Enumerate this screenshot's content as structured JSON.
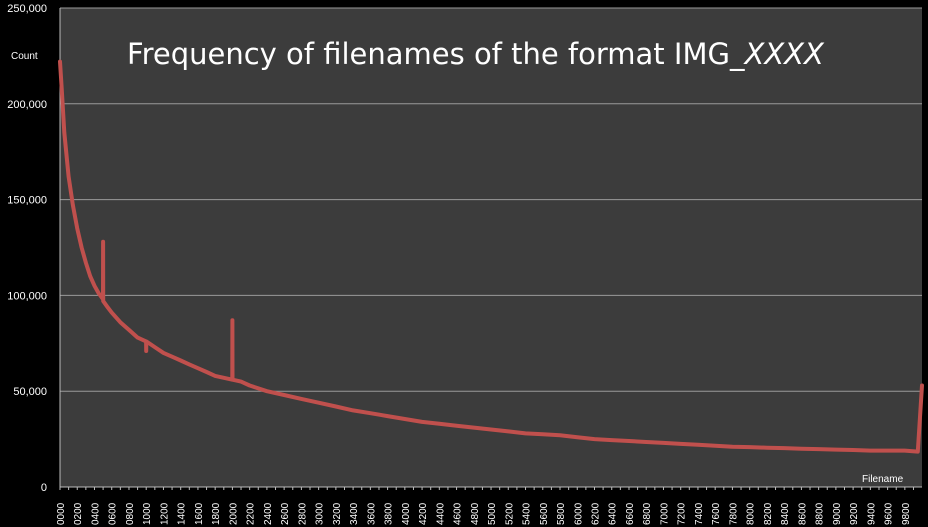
{
  "chart_data": {
    "type": "line",
    "title": "Frequency of filenames of the format IMG_",
    "title_suffix": "XXXX",
    "xlabel": "Filename",
    "ylabel": "Count",
    "xlim": [
      0,
      9999
    ],
    "ylim": [
      0,
      250000
    ],
    "y_ticks": [
      "0",
      "50,000",
      "100,000",
      "150,000",
      "200,000",
      "250,000"
    ],
    "x_ticks": [
      "0000",
      "0200",
      "0400",
      "0600",
      "0800",
      "1000",
      "1200",
      "1400",
      "1600",
      "1800",
      "2000",
      "2200",
      "2400",
      "2600",
      "2800",
      "3000",
      "3200",
      "3400",
      "3600",
      "3800",
      "4000",
      "4200",
      "4400",
      "4600",
      "4800",
      "5000",
      "5200",
      "5400",
      "5600",
      "5800",
      "6000",
      "6200",
      "6400",
      "6600",
      "6800",
      "7000",
      "7200",
      "7400",
      "7600",
      "7800",
      "8000",
      "8200",
      "8400",
      "8600",
      "8800",
      "9000",
      "9200",
      "9400",
      "9600",
      "9800"
    ],
    "grid": true,
    "colors": {
      "background": "#000000",
      "plot_area": "#3c3c3c",
      "gridline": "#9a9a9a",
      "series": "#c0504d",
      "text": "#ffffff"
    },
    "series": [
      {
        "x": [
          0,
          20,
          50,
          100,
          150,
          200,
          250,
          300,
          350,
          400,
          450,
          499,
          500,
          501,
          550,
          600,
          700,
          800,
          900,
          999,
          1000,
          1001,
          1100,
          1200,
          1300,
          1400,
          1500,
          1600,
          1700,
          1800,
          1900,
          1999,
          2000,
          2001,
          2100,
          2200,
          2400,
          2600,
          2800,
          3000,
          3200,
          3400,
          3600,
          3800,
          4000,
          4200,
          4400,
          4600,
          4800,
          5000,
          5200,
          5400,
          5600,
          5800,
          6000,
          6200,
          6400,
          6600,
          6800,
          7000,
          7200,
          7400,
          7600,
          7800,
          8000,
          8200,
          8400,
          8600,
          8800,
          9000,
          9200,
          9400,
          9600,
          9800,
          9950,
          9999
        ],
        "values": [
          222000,
          208000,
          185000,
          162000,
          147000,
          135000,
          125000,
          117000,
          110000,
          105000,
          101000,
          98000,
          128000,
          97000,
          94000,
          91000,
          86000,
          82000,
          78000,
          76000,
          71000,
          76000,
          73000,
          70000,
          68000,
          66000,
          64000,
          62000,
          60000,
          58000,
          57000,
          56000,
          87000,
          56000,
          55000,
          53000,
          50000,
          48000,
          46000,
          44000,
          42000,
          40000,
          38500,
          37000,
          35500,
          34000,
          33000,
          32000,
          31000,
          30000,
          29000,
          28000,
          27500,
          27000,
          26000,
          25000,
          24500,
          24000,
          23500,
          23000,
          22500,
          22000,
          21500,
          21000,
          20800,
          20500,
          20300,
          20000,
          19800,
          19500,
          19300,
          19000,
          19000,
          19000,
          18500,
          53000
        ]
      }
    ]
  }
}
